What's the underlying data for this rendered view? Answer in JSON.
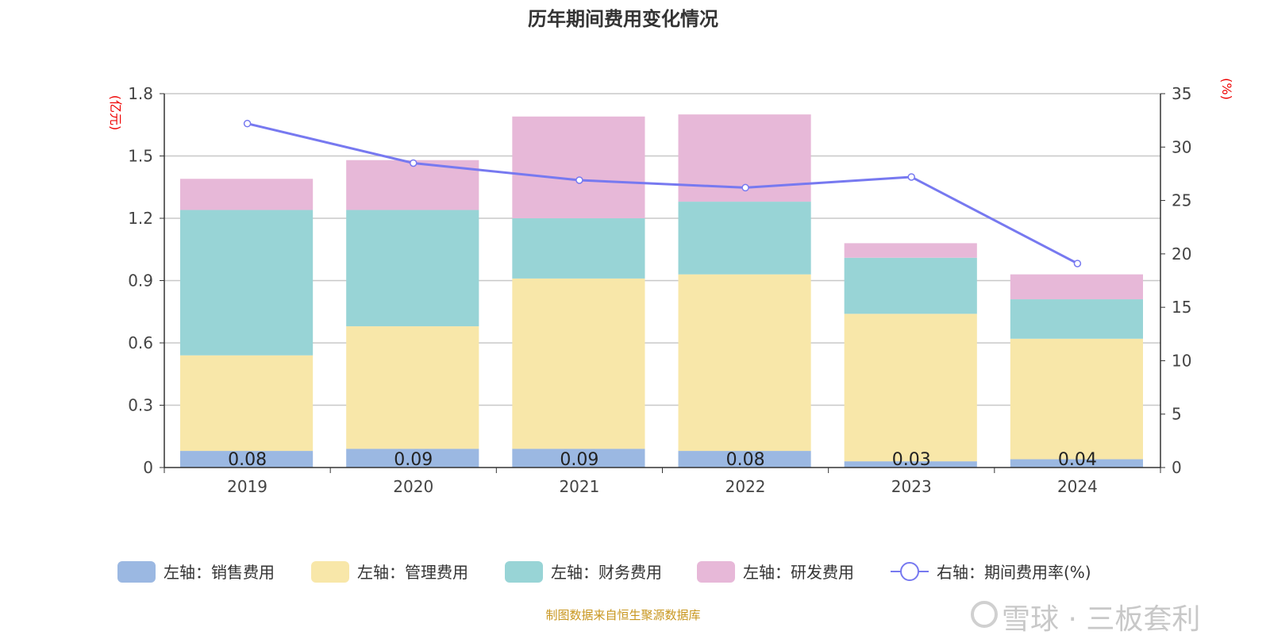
{
  "chart_data": {
    "type": "bar",
    "title": "历年期间费用变化情况",
    "categories": [
      "2019",
      "2020",
      "2021",
      "2022",
      "2023",
      "2024"
    ],
    "stacked": true,
    "left_axis": {
      "unit": "(亿元)",
      "ylim": [
        0,
        1.8
      ],
      "ticks": [
        "0",
        "0.3",
        "0.6",
        "0.9",
        "1.2",
        "1.5",
        "1.8"
      ]
    },
    "right_axis": {
      "unit": "(%)",
      "ylim": [
        0,
        35
      ],
      "ticks": [
        "0",
        "5",
        "10",
        "15",
        "20",
        "25",
        "30",
        "35"
      ]
    },
    "grid": true,
    "legend_position": "bottom",
    "series": [
      {
        "name": "左轴：销售费用",
        "type": "bar",
        "axis": "left",
        "color": "#9bb8e2",
        "values": [
          0.08,
          0.09,
          0.09,
          0.08,
          0.03,
          0.04
        ],
        "labels": [
          "0.08",
          "0.09",
          "0.09",
          "0.08",
          "0.03",
          "0.04"
        ]
      },
      {
        "name": "左轴：管理费用",
        "type": "bar",
        "axis": "left",
        "color": "#f8e7a9",
        "values": [
          0.46,
          0.59,
          0.82,
          0.85,
          0.71,
          0.58
        ]
      },
      {
        "name": "左轴：财务费用",
        "type": "bar",
        "axis": "left",
        "color": "#98d4d6",
        "values": [
          0.7,
          0.56,
          0.29,
          0.35,
          0.27,
          0.19
        ]
      },
      {
        "name": "左轴：研发费用",
        "type": "bar",
        "axis": "left",
        "color": "#e7b8d8",
        "values": [
          0.15,
          0.24,
          0.49,
          0.42,
          0.07,
          0.12
        ]
      },
      {
        "name": "右轴：期间费用率(%)",
        "type": "line",
        "axis": "right",
        "color": "#7779f0",
        "values": [
          32.2,
          28.5,
          26.9,
          26.2,
          27.2,
          19.1
        ]
      }
    ]
  },
  "source": "制图数据来自恒生聚源数据库",
  "watermark": "雪球 · 三板套利"
}
